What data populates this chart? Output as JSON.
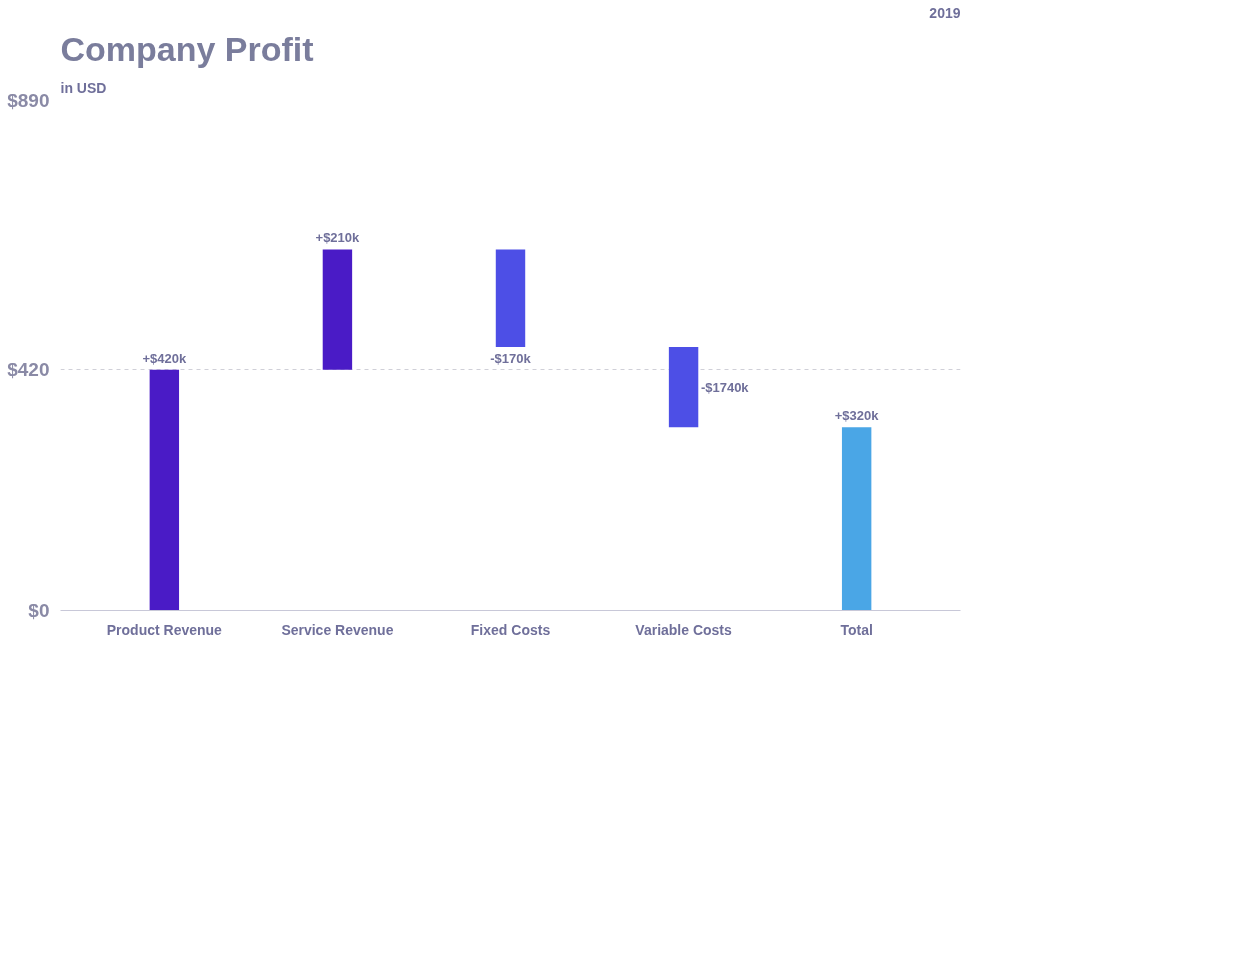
{
  "chart_data": {
    "type": "bar",
    "title": "Company Profit",
    "subtitle": "in USD",
    "annotations": [
      "2019",
      "-$1740k"
    ],
    "categories": [
      "Product Revenue",
      "Service Revenue",
      "Fixed Costs",
      "Variable Costs",
      "Total"
    ],
    "base": [
      0,
      420,
      630,
      460,
      0
    ],
    "values": [
      420,
      210,
      -170,
      -140,
      320
    ],
    "colors": [
      "#4a1bc6",
      "#4a1bc6",
      "#4d4fe6",
      "#4d4fe6",
      "#4aa6e6"
    ],
    "value_labels": [
      "+$420k",
      "+$210k",
      "-$170k",
      null,
      "+$320k"
    ],
    "ylim": [
      0,
      890
    ],
    "yticks": [
      {
        "value": 0,
        "label": "$0"
      },
      {
        "value": 420,
        "label": "$420"
      },
      {
        "value": 890,
        "label": "$890"
      }
    ],
    "grid": "y"
  }
}
